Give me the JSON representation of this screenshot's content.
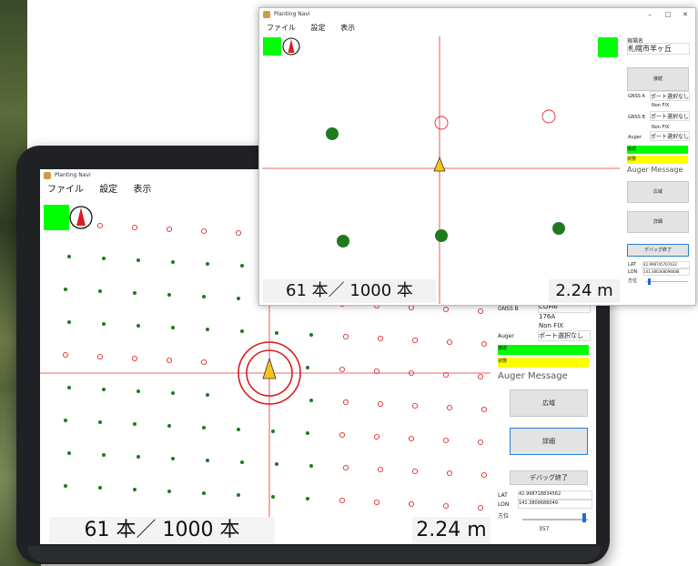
{
  "app": {
    "title": "Planting Navi"
  },
  "menu": {
    "file": "ファイル",
    "settings": "設定",
    "view": "表示"
  },
  "counter": {
    "text": "61 本／ 1000 本",
    "planted": 61,
    "total": 1000
  },
  "distance": {
    "text": "2.24 m"
  },
  "side": {
    "site_label": "現場名",
    "site_name": "札幌市羊ヶ丘",
    "connect": "接続",
    "gnss_a_label": "GNSS A",
    "gnss_a_port": "ポート選択なし",
    "gnss_a_status": "Non FIX",
    "gnss_b_label": "GNSS B",
    "gnss_b_port": "ポート選択なし",
    "gnss_b_status": "Non FIX",
    "auger_label": "Auger",
    "auger_port": "ポート選択なし",
    "connect_bar": "接続",
    "state_bar": "状態",
    "auger_message": "Auger Message",
    "zoom_button": "広域",
    "detail_button": "詳細",
    "debug_button": "デバッグ終了",
    "lat_label": "LAT",
    "lat_value": "42.998745707432",
    "lon_label": "LON",
    "lon_value": "141.380368098088",
    "heading_label": "方位"
  },
  "tablet_side": {
    "gnss_b_label": "GNSS B",
    "gnss_b_port": "COM6",
    "gnss_b_baud": "176A",
    "gnss_b_status": "Non FIX",
    "auger_label": "Auger",
    "auger_port": "ポート選択なし",
    "connect_bar": "接続",
    "state_bar": "状態",
    "auger_message": "Auger Message",
    "zoom_button": "広域",
    "detail_button": "詳細",
    "debug_button": "デバッグ終了",
    "lat_label": "LAT",
    "lat_value": "42.998718834562",
    "lon_label": "LON",
    "lon_value": "141.3809686049",
    "heading_label": "方位",
    "heading_value": "357"
  },
  "window_controls": {
    "minimize": "–",
    "maximize": "□",
    "close": "✕"
  },
  "colors": {
    "green": "#00ff00",
    "yellow": "#ffff00",
    "plant": "#1f7a1f",
    "target": "#e03030",
    "arrow": "#f5c518"
  },
  "icons": {
    "compass": "compass-icon",
    "app": "app-icon"
  }
}
